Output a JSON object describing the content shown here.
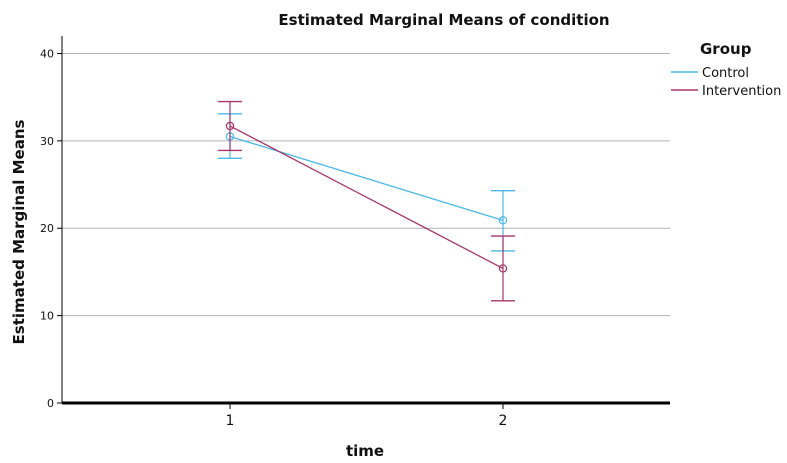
{
  "chart_data": {
    "type": "line",
    "title": "Estimated Marginal Means of condition",
    "xlabel": "time",
    "ylabel": "Estimated Marginal Means",
    "categories": [
      "1",
      "2"
    ],
    "ylim": [
      0,
      42
    ],
    "yticks": [
      0,
      10,
      20,
      30,
      40
    ],
    "grid": true,
    "legend": {
      "title": "Group",
      "placement": "right"
    },
    "series": [
      {
        "name": "Control",
        "color": "#4ab8e8",
        "values": [
          30.5,
          20.9
        ],
        "ci_lower": [
          28.0,
          17.4
        ],
        "ci_upper": [
          33.1,
          24.3
        ]
      },
      {
        "name": "Intervention",
        "color": "#a8356a",
        "values": [
          31.7,
          15.4
        ],
        "ci_lower": [
          28.9,
          11.7
        ],
        "ci_upper": [
          34.5,
          19.1
        ]
      }
    ]
  }
}
